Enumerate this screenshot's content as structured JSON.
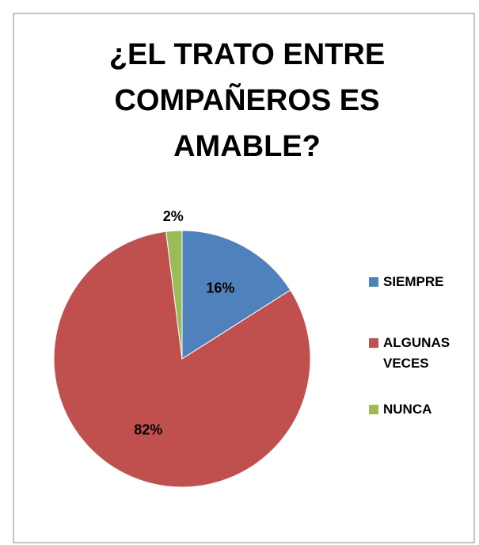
{
  "chart_data": {
    "type": "pie",
    "title": "¿EL TRATO ENTRE COMPAÑEROS ES AMABLE?",
    "categories": [
      "SIEMPRE",
      "ALGUNAS VECES",
      "NUNCA"
    ],
    "values": [
      16,
      82,
      2
    ],
    "value_labels": [
      "16%",
      "82%",
      "2%"
    ],
    "colors": [
      "#4f81bd",
      "#c0504d",
      "#9bbb59"
    ],
    "legend": "right"
  }
}
